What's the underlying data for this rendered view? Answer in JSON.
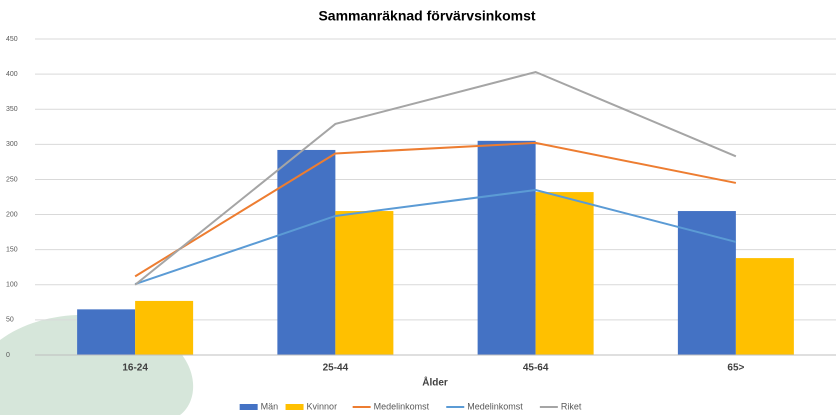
{
  "chart_data": {
    "type": "bar",
    "title": "Sammanräknad förvärvsinkomst",
    "x_label": "Ålder",
    "categories": [
      "16-24",
      "25-44",
      "45-64",
      "65>"
    ],
    "series": [
      {
        "name": "Män",
        "type": "bar",
        "color": "#4472c4",
        "values": [
          65,
          292,
          305,
          205
        ]
      },
      {
        "name": "Kvinnor",
        "type": "bar",
        "color": "#ffc000",
        "values": [
          77,
          205,
          232,
          138
        ]
      },
      {
        "name": "Medelinkomst",
        "type": "line",
        "color": "#ed7d31",
        "values": [
          112,
          287,
          302,
          245
        ]
      },
      {
        "name": "Medelinkomst",
        "type": "line",
        "color": "#5b9bd5",
        "values": [
          101,
          198,
          235,
          161
        ]
      },
      {
        "name": "Riket",
        "type": "line",
        "color": "#a5a5a5",
        "values": [
          100,
          329,
          403,
          283
        ]
      }
    ],
    "ylim": [
      0,
      450
    ],
    "yticks": [
      0,
      50,
      100,
      150,
      200,
      250,
      300,
      350,
      400,
      450
    ],
    "grid": true,
    "legend": "bottom"
  }
}
